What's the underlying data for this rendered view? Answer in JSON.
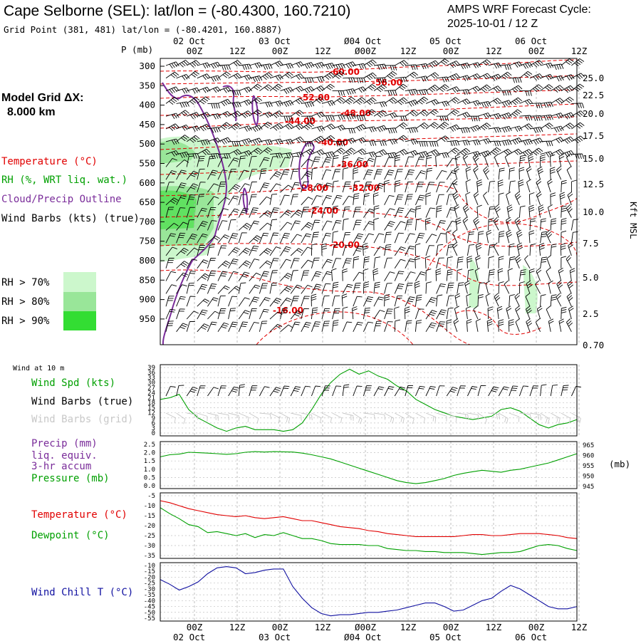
{
  "header": {
    "station_title": "Cape Selborne (SEL):  lat/lon = (-80.4300, 160.7210)",
    "grid_point": "Grid Point (381, 481) lat/lon = (-80.4201, 160.8887)",
    "cycle_line1": "AMPS WRF Forecast Cycle:",
    "cycle_line2": "2025-10-01 / 12  Z"
  },
  "model_grid": {
    "line1": "Model Grid ΔX:",
    "line2": "8.000 km"
  },
  "legend_upper": [
    {
      "label": "Temperature (°C)",
      "color": "#e10000"
    },
    {
      "label": "RH (%, WRT liq. wat.)",
      "color": "#00a000"
    },
    {
      "label": "Cloud/Precip Outline",
      "color": "#7a2c9a"
    },
    {
      "label": "Wind Barbs (kts) (true)",
      "color": "#000000"
    }
  ],
  "rh_key": [
    {
      "label": "RH > 70%",
      "color": "#ccf7cc"
    },
    {
      "label": "RH > 80%",
      "color": "#99e699"
    },
    {
      "label": "RH > 90%",
      "color": "#33dd33"
    }
  ],
  "time_axis": {
    "top_dates": [
      "02 Oct",
      "03 Oct",
      "Ø04 Oct",
      "05 Oct",
      "06 Oct"
    ],
    "bottom_dates": [
      "02 Oct",
      "03 Oct",
      "Ø04 Oct",
      "05 Oct",
      "06 Oct"
    ],
    "ticks": [
      "00Z",
      "12Z",
      "00Z",
      "12Z",
      "Ø00Z",
      "12Z",
      "00Z",
      "12Z",
      "00Z",
      "12Z"
    ]
  },
  "chart_data": [
    {
      "type": "heatmap",
      "panel": "cross-section",
      "yaxis_title": "P (mb)",
      "y_ticks": [
        "300",
        "350",
        "400",
        "450",
        "500",
        "550",
        "600",
        "650",
        "700",
        "750",
        "800",
        "850",
        "900",
        "950"
      ],
      "y2_title": "Kft MSL",
      "y2_ticks": [
        "25.0",
        "22.5",
        "20.0",
        "17.5",
        "15.0",
        "12.5",
        "10.0",
        "7.5",
        "5.0",
        "2.5",
        "0.70"
      ],
      "isotherm_labels": [
        "-60.00",
        "-56.00",
        "-52.00",
        "-48.00",
        "-44.00",
        "-40.00",
        "-36.00",
        "-32.00",
        "-28.00",
        "-24.00",
        "-20.00",
        "-16.00"
      ]
    },
    {
      "type": "line",
      "panel": "wind",
      "top_note": "Wind at 10 m",
      "labels": [
        {
          "text": "Wind Spd (kts)",
          "color": "#00a000"
        },
        {
          "text": "Wind Barbs (true)",
          "color": "#000000"
        },
        {
          "text": "Wind Barbs (grid)",
          "color": "#c8c8c8"
        }
      ],
      "y_ticks": [
        "39",
        "36",
        "33",
        "30",
        "27",
        "24",
        "21",
        "18",
        "15",
        "12",
        "9",
        "6",
        "3",
        "0"
      ],
      "ylim": [
        0,
        39
      ],
      "x": [
        0,
        3,
        6,
        9,
        12,
        15,
        18,
        21,
        24,
        27,
        30,
        33,
        36,
        39,
        42,
        45,
        48,
        51,
        54,
        57,
        60,
        63,
        66,
        69,
        72,
        75,
        78,
        81,
        84,
        87,
        90,
        93,
        96,
        99,
        102,
        105,
        108,
        111,
        114,
        117,
        120,
        123,
        126,
        129,
        132
      ],
      "series": [
        {
          "values": [
            20,
            21,
            23,
            14,
            9,
            6,
            3,
            1,
            3,
            4,
            2,
            2,
            2,
            1,
            2,
            6,
            14,
            23,
            30,
            35,
            38,
            35,
            37,
            34,
            32,
            28,
            25,
            20,
            17,
            14,
            12,
            10,
            9,
            8,
            9,
            10,
            14,
            15,
            13,
            9,
            5,
            3,
            5,
            6,
            8
          ],
          "color": "#00a000"
        }
      ]
    },
    {
      "type": "line",
      "panel": "precip-pressure",
      "labels": [
        {
          "text": "Precip (mm)",
          "color": "#7a2c9a"
        },
        {
          "text": "liq. equiv.",
          "color": "#7a2c9a"
        },
        {
          "text": "3-hr accum",
          "color": "#7a2c9a"
        },
        {
          "text": "Pressure (mb)",
          "color": "#00a000"
        }
      ],
      "y_ticks": [
        "2.5",
        "2.0",
        "1.5",
        "1.0",
        "0.5",
        "0.0"
      ],
      "ylim": [
        0,
        2.5
      ],
      "y2_ticks": [
        "965",
        "960",
        "955",
        "950",
        "945"
      ],
      "y2_unit": "(mb)",
      "y2lim": [
        945,
        965
      ],
      "x": [
        0,
        3,
        6,
        9,
        12,
        15,
        18,
        21,
        24,
        27,
        30,
        33,
        36,
        39,
        42,
        45,
        48,
        51,
        54,
        57,
        60,
        63,
        66,
        69,
        72,
        75,
        78,
        81,
        84,
        87,
        90,
        93,
        96,
        99,
        102,
        105,
        108,
        111,
        114,
        117,
        120,
        123,
        126,
        129,
        132
      ],
      "series": [
        {
          "values": [
            959,
            960,
            960.3,
            961.2,
            961,
            960.8,
            960.5,
            960.2,
            960.5,
            961.2,
            961.5,
            961.3,
            961.5,
            961.4,
            961.3,
            960.8,
            960,
            959,
            958,
            956.5,
            955,
            953.5,
            952,
            950.5,
            949,
            947.5,
            946.5,
            946,
            946.5,
            947.5,
            948.5,
            950,
            951,
            951.8,
            952.5,
            952,
            951.5,
            952.5,
            953,
            954,
            955,
            956,
            957.5,
            959,
            960.5
          ],
          "color": "#00a000"
        }
      ]
    },
    {
      "type": "line",
      "panel": "temperature-dewpoint",
      "labels": [
        {
          "text": "Temperature (°C)",
          "color": "#e10000"
        },
        {
          "text": "Dewpoint (°C)",
          "color": "#00a000"
        }
      ],
      "y_ticks": [
        "-5",
        "-10",
        "-15",
        "-20",
        "-25",
        "-30",
        "-35"
      ],
      "ylim": [
        -35,
        -5
      ],
      "x": [
        0,
        3,
        6,
        9,
        12,
        15,
        18,
        21,
        24,
        27,
        30,
        33,
        36,
        39,
        42,
        45,
        48,
        51,
        54,
        57,
        60,
        63,
        66,
        69,
        72,
        75,
        78,
        81,
        84,
        87,
        90,
        93,
        96,
        99,
        102,
        105,
        108,
        111,
        114,
        117,
        120,
        123,
        126,
        129,
        132
      ],
      "series": [
        {
          "values": [
            -7.5,
            -8.5,
            -10,
            -11.5,
            -12.5,
            -13.5,
            -14.5,
            -15,
            -15.5,
            -15,
            -16,
            -16.5,
            -16,
            -15.5,
            -16.5,
            -17.5,
            -17.5,
            -18.5,
            -19.5,
            -20.5,
            -21,
            -21.5,
            -22.5,
            -23,
            -24,
            -24.5,
            -25,
            -25.5,
            -25.5,
            -25.5,
            -25.5,
            -25.5,
            -25,
            -24.5,
            -24.5,
            -25,
            -25,
            -24.5,
            -24,
            -24,
            -24,
            -24.5,
            -25,
            -26,
            -26.5
          ],
          "color": "#e10000"
        },
        {
          "values": [
            -11,
            -14,
            -16.5,
            -19.5,
            -20.5,
            -23.5,
            -23,
            -24,
            -25,
            -24,
            -26,
            -24.5,
            -25,
            -23.5,
            -25,
            -26.5,
            -26.5,
            -27.5,
            -29,
            -29.5,
            -29.5,
            -29.5,
            -30,
            -30,
            -31.5,
            -32,
            -32.5,
            -32.5,
            -33,
            -33,
            -33.5,
            -33.5,
            -33.5,
            -34,
            -34.5,
            -34,
            -33.5,
            -33.5,
            -33,
            -31.5,
            -30,
            -29.5,
            -30,
            -31.5,
            -32.5
          ],
          "color": "#00a000"
        }
      ]
    },
    {
      "type": "line",
      "panel": "wind-chill",
      "labels": [
        {
          "text": "Wind Chill T (°C)",
          "color": "#1010a0"
        }
      ],
      "y_ticks": [
        "-10",
        "-15",
        "-20",
        "-25",
        "-30",
        "-35",
        "-40",
        "-45",
        "-50",
        "-55"
      ],
      "ylim": [
        -55,
        -10
      ],
      "x": [
        0,
        3,
        6,
        9,
        12,
        15,
        18,
        21,
        24,
        27,
        30,
        33,
        36,
        39,
        42,
        45,
        48,
        51,
        54,
        57,
        60,
        63,
        66,
        69,
        72,
        75,
        78,
        81,
        84,
        87,
        90,
        93,
        96,
        99,
        102,
        105,
        108,
        111,
        114,
        117,
        120,
        123,
        126,
        129,
        132
      ],
      "series": [
        {
          "values": [
            -22,
            -26,
            -31,
            -28,
            -24,
            -17,
            -12,
            -11,
            -12,
            -17,
            -16,
            -14,
            -13,
            -13,
            -28,
            -38,
            -46,
            -51,
            -53,
            -52,
            -52,
            -51,
            -50,
            -50,
            -49,
            -48,
            -46,
            -44,
            -42,
            -42,
            -45,
            -49,
            -48,
            -44,
            -40,
            -38,
            -32,
            -27,
            -30,
            -35,
            -40,
            -45,
            -47,
            -47,
            -45
          ],
          "color": "#1010a0"
        }
      ]
    }
  ]
}
